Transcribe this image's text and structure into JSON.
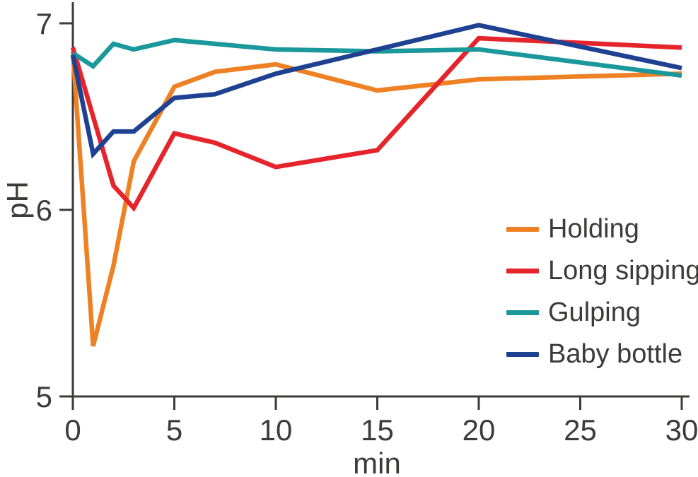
{
  "chart_data": {
    "type": "line",
    "title": "",
    "xlabel": "min",
    "ylabel": "pH",
    "xlim": [
      0,
      30
    ],
    "ylim": [
      5,
      7
    ],
    "x_ticks": [
      "0",
      "5",
      "10",
      "15",
      "20",
      "25",
      "30"
    ],
    "x_tick_values": [
      0,
      5,
      10,
      15,
      20,
      25,
      30
    ],
    "y_ticks": [
      "5",
      "6",
      "7"
    ],
    "y_tick_values": [
      5,
      6,
      7
    ],
    "grid": false,
    "legend_position": "right-middle",
    "axis_color": "#3B3B3A",
    "x": [
      0,
      1,
      2,
      3,
      5,
      7,
      10,
      15,
      20,
      30
    ],
    "series": [
      {
        "name": "Holding",
        "color": "#EF8125",
        "values": [
          6.85,
          5.27,
          5.7,
          6.26,
          6.66,
          6.74,
          6.78,
          6.64,
          6.7,
          6.73
        ]
      },
      {
        "name": "Long sipping",
        "color": "#E5242B",
        "values": [
          6.87,
          6.5,
          6.13,
          6.01,
          6.41,
          6.36,
          6.23,
          6.32,
          6.92,
          6.87
        ]
      },
      {
        "name": "Gulping",
        "color": "#1A989C",
        "values": [
          6.84,
          6.77,
          6.89,
          6.86,
          6.91,
          6.89,
          6.86,
          6.85,
          6.86,
          6.72
        ]
      },
      {
        "name": "Baby bottle",
        "color": "#1F4191",
        "values": [
          6.83,
          6.3,
          6.42,
          6.42,
          6.6,
          6.62,
          6.73,
          6.86,
          6.99,
          6.76
        ]
      }
    ]
  }
}
